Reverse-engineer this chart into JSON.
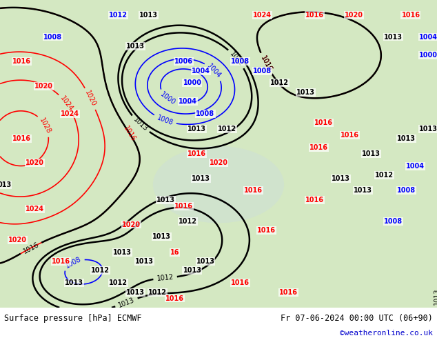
{
  "title_left": "Surface pressure [hPa] ECMWF",
  "title_right": "Fr 07-06-2024 00:00 UTC (06+90)",
  "copyright": "©weatheronline.co.uk",
  "bg_color": "#e8f4e8",
  "text_color_black": "#000000",
  "text_color_blue": "#0000cc",
  "text_color_red": "#cc0000",
  "figsize": [
    6.34,
    4.9
  ],
  "dpi": 100,
  "bottom_bar_color": "#f0f0f0",
  "bottom_bar_height": 0.09
}
